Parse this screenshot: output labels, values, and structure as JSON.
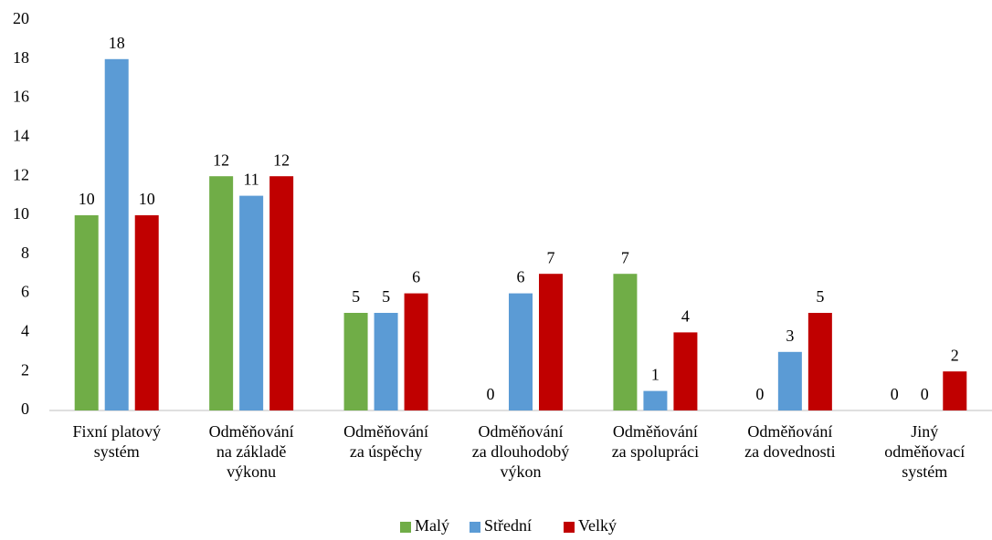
{
  "chart_data": {
    "type": "bar",
    "categories": [
      "Fixní platový\nsystém",
      "Odměňování\nna základě\nvýkonu",
      "Odměňování\nza úspěchy",
      "Odměňování\nza dlouhodobý\nvýkon",
      "Odměňování\nza spolupráci",
      "Odměňování\nza dovednosti",
      "Jiný\nodměňovací\nsystém"
    ],
    "series": [
      {
        "name": "Malý",
        "color": "#70ad47",
        "values": [
          10,
          12,
          5,
          0,
          7,
          0,
          0
        ]
      },
      {
        "name": "Střední",
        "color": "#5b9bd5",
        "values": [
          18,
          11,
          5,
          6,
          1,
          3,
          0
        ]
      },
      {
        "name": "Velký",
        "color": "#c00000",
        "values": [
          10,
          12,
          6,
          7,
          4,
          5,
          2
        ]
      }
    ],
    "ylim": [
      0,
      20
    ],
    "yticks": [
      0,
      2,
      4,
      6,
      8,
      10,
      12,
      14,
      16,
      18,
      20
    ],
    "legend": "bottom"
  }
}
